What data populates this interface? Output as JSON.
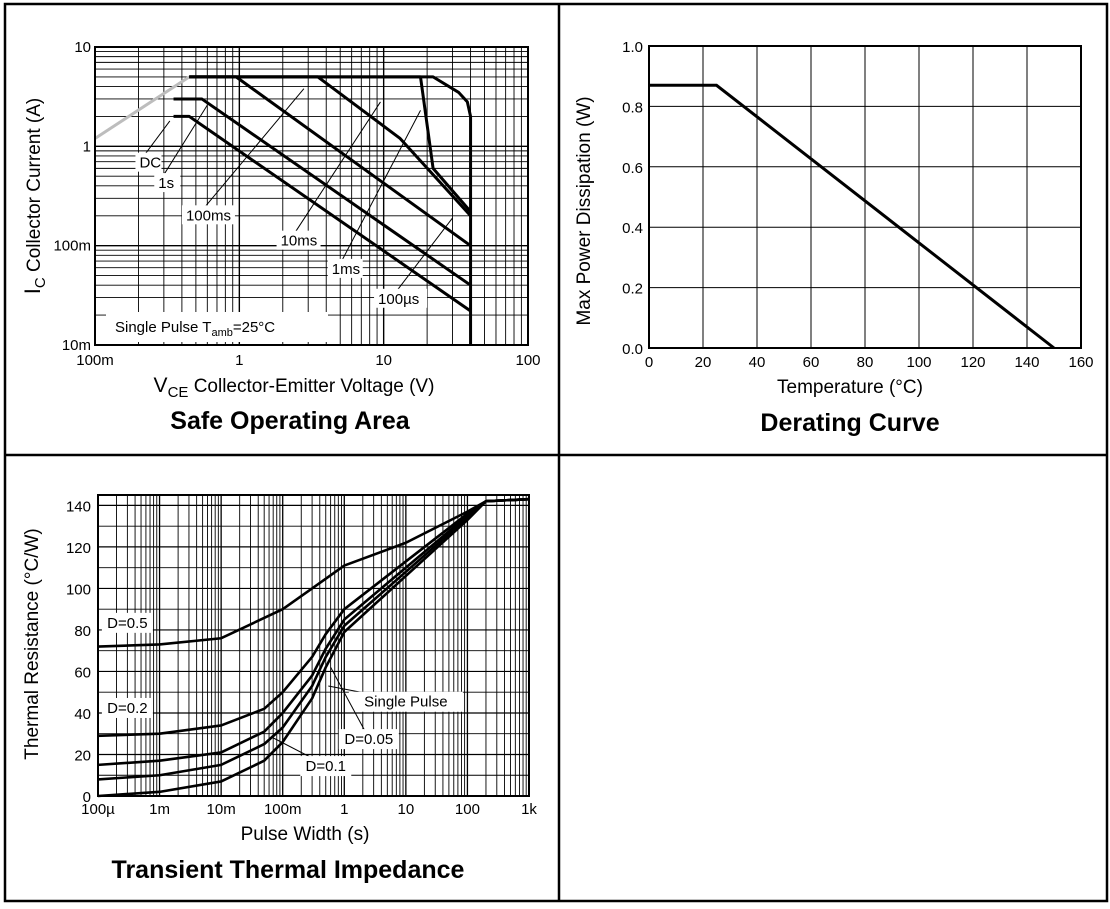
{
  "chart_data": [
    {
      "type": "line",
      "title": "Safe Operating Area",
      "xlabel_main": "V",
      "xlabel_sub": "CE",
      "xlabel_rest": "Collector-Emitter Voltage (V)",
      "ylabel_main": "I",
      "ylabel_sub": "C",
      "ylabel_rest": "Collector Current (A)",
      "x_scale": "log",
      "y_scale": "log",
      "xlim": [
        0.1,
        100
      ],
      "ylim": [
        0.01,
        10
      ],
      "x_ticks": [
        {
          "v": 0.1,
          "label": "100m"
        },
        {
          "v": 1,
          "label": "1"
        },
        {
          "v": 10,
          "label": "10"
        },
        {
          "v": 100,
          "label": "100"
        }
      ],
      "y_ticks": [
        {
          "v": 0.01,
          "label": "10m"
        },
        {
          "v": 0.1,
          "label": "100m"
        },
        {
          "v": 1,
          "label": "1"
        },
        {
          "v": 10,
          "label": "10"
        }
      ],
      "grid": true,
      "note": {
        "text": "Single Pulse  T",
        "sub": "amb",
        "rest": "=25°C"
      },
      "limit_line": {
        "points": [
          [
            0.1,
            1.2
          ],
          [
            0.45,
            5
          ]
        ]
      },
      "series": [
        {
          "name": "DC",
          "points": [
            [
              0.35,
              2
            ],
            [
              0.45,
              2
            ],
            [
              40,
              0.022
            ]
          ]
        },
        {
          "name": "1s",
          "points": [
            [
              0.35,
              3
            ],
            [
              0.55,
              3
            ],
            [
              40,
              0.04
            ]
          ]
        },
        {
          "name": "100ms",
          "points": [
            [
              0.45,
              5
            ],
            [
              0.95,
              5
            ],
            [
              40,
              0.1
            ]
          ]
        },
        {
          "name": "10ms",
          "points": [
            [
              0.45,
              5
            ],
            [
              3.5,
              5
            ],
            [
              13,
              1.2
            ],
            [
              40,
              0.2
            ]
          ]
        },
        {
          "name": "1ms",
          "points": [
            [
              0.45,
              5
            ],
            [
              18,
              5
            ],
            [
              22,
              0.6
            ],
            [
              40,
              0.22
            ]
          ]
        },
        {
          "name": "100µs",
          "points": [
            [
              0.45,
              5
            ],
            [
              22,
              5
            ],
            [
              33,
              3.5
            ],
            [
              38,
              2.8
            ],
            [
              40,
              2
            ],
            [
              40,
              0.01
            ]
          ]
        }
      ],
      "annotations": [
        {
          "text": "DC",
          "x": 0.2,
          "y": 0.61,
          "tx": 0.33,
          "ty": 1.8
        },
        {
          "text": "1s",
          "x": 0.27,
          "y": 0.38,
          "tx": 0.6,
          "ty": 2.6
        },
        {
          "text": "100ms",
          "x": 0.42,
          "y": 0.18,
          "tx": 2.8,
          "ty": 3.8
        },
        {
          "text": "10ms",
          "x": 1.9,
          "y": 0.1,
          "tx": 9.5,
          "ty": 2.8
        },
        {
          "text": "1ms",
          "x": 4.3,
          "y": 0.052,
          "tx": 18,
          "ty": 2.3
        },
        {
          "text": "100µs",
          "x": 9,
          "y": 0.026,
          "tx": 30,
          "ty": 0.19
        }
      ]
    },
    {
      "type": "line",
      "title": "Derating Curve",
      "xlabel": "Temperature (°C)",
      "ylabel": "Max Power Dissipation (W)",
      "xlim": [
        0,
        160
      ],
      "ylim": [
        0,
        1
      ],
      "x_ticks": [
        "0",
        "20",
        "40",
        "60",
        "80",
        "100",
        "120",
        "140",
        "160"
      ],
      "y_ticks": [
        "0.0",
        "0.2",
        "0.4",
        "0.6",
        "0.8",
        "1.0"
      ],
      "grid": true,
      "series": [
        {
          "x": [
            0,
            25,
            150
          ],
          "y": [
            0.87,
            0.87,
            0
          ]
        }
      ]
    },
    {
      "type": "line",
      "title": "Transient Thermal Impedance",
      "xlabel": "Pulse Width (s)",
      "ylabel": "Thermal Resistance (°C/W)",
      "x_scale": "log",
      "xlim": [
        0.0001,
        1000
      ],
      "ylim": [
        0,
        145
      ],
      "x_ticks": [
        {
          "v": 0.0001,
          "label": "100µ"
        },
        {
          "v": 0.001,
          "label": "1m"
        },
        {
          "v": 0.01,
          "label": "10m"
        },
        {
          "v": 0.1,
          "label": "100m"
        },
        {
          "v": 1,
          "label": "1"
        },
        {
          "v": 10,
          "label": "10"
        },
        {
          "v": 100,
          "label": "100"
        },
        {
          "v": 1000,
          "label": "1k"
        }
      ],
      "y_ticks": [
        {
          "v": 0,
          "label": "0"
        },
        {
          "v": 20,
          "label": "20"
        },
        {
          "v": 40,
          "label": "40"
        },
        {
          "v": 60,
          "label": "60"
        },
        {
          "v": 80,
          "label": "80"
        },
        {
          "v": 100,
          "label": "100"
        },
        {
          "v": 120,
          "label": "120"
        },
        {
          "v": 140,
          "label": "140"
        }
      ],
      "grid": true,
      "series": [
        {
          "name": "D=0.5",
          "points": [
            [
              0.0001,
              72
            ],
            [
              0.001,
              73
            ],
            [
              0.01,
              76
            ],
            [
              0.1,
              90
            ],
            [
              0.3,
              100
            ],
            [
              1,
              111
            ],
            [
              10,
              122
            ],
            [
              100,
              137
            ],
            [
              200,
              142
            ],
            [
              1000,
              143
            ]
          ]
        },
        {
          "name": "D=0.2",
          "points": [
            [
              0.0001,
              29
            ],
            [
              0.001,
              30
            ],
            [
              0.01,
              34
            ],
            [
              0.05,
              42
            ],
            [
              0.1,
              50
            ],
            [
              0.3,
              67
            ],
            [
              0.5,
              78
            ],
            [
              1,
              90
            ],
            [
              10,
              113
            ],
            [
              100,
              136
            ],
            [
              200,
              142
            ],
            [
              1000,
              143
            ]
          ]
        },
        {
          "name": "D=0.1",
          "points": [
            [
              0.0001,
              15
            ],
            [
              0.001,
              17
            ],
            [
              0.01,
              21
            ],
            [
              0.05,
              31
            ],
            [
              0.1,
              40
            ],
            [
              0.3,
              58
            ],
            [
              0.5,
              71
            ],
            [
              1,
              85
            ],
            [
              10,
              110
            ],
            [
              100,
              135
            ],
            [
              200,
              142
            ],
            [
              1000,
              143
            ]
          ]
        },
        {
          "name": "D=0.05",
          "points": [
            [
              0.0001,
              8
            ],
            [
              0.001,
              10
            ],
            [
              0.01,
              15
            ],
            [
              0.05,
              25
            ],
            [
              0.1,
              33
            ],
            [
              0.3,
              53
            ],
            [
              0.5,
              67
            ],
            [
              1,
              82
            ],
            [
              10,
              108
            ],
            [
              100,
              134
            ],
            [
              200,
              142
            ],
            [
              1000,
              143
            ]
          ]
        },
        {
          "name": "Single Pulse",
          "points": [
            [
              0.0001,
              0
            ],
            [
              0.001,
              2
            ],
            [
              0.01,
              7
            ],
            [
              0.05,
              17
            ],
            [
              0.1,
              26
            ],
            [
              0.3,
              47
            ],
            [
              0.5,
              62
            ],
            [
              1,
              79
            ],
            [
              10,
              106
            ],
            [
              100,
              133
            ],
            [
              200,
              142
            ],
            [
              1000,
              143
            ]
          ]
        }
      ],
      "annotations": [
        {
          "text": "D=0.5",
          "x": 0.0003,
          "y": 81
        },
        {
          "text": "D=0.2",
          "x": 0.0003,
          "y": 40
        },
        {
          "text": "Single Pulse",
          "x": 10,
          "y": 43,
          "tx": 0.55,
          "ty": 53
        },
        {
          "text": "D=0.05",
          "x": 2.5,
          "y": 25,
          "tx": 0.6,
          "ty": 62
        },
        {
          "text": "D=0.1",
          "x": 0.5,
          "y": 12,
          "tx": 0.07,
          "ty": 28
        }
      ]
    }
  ]
}
